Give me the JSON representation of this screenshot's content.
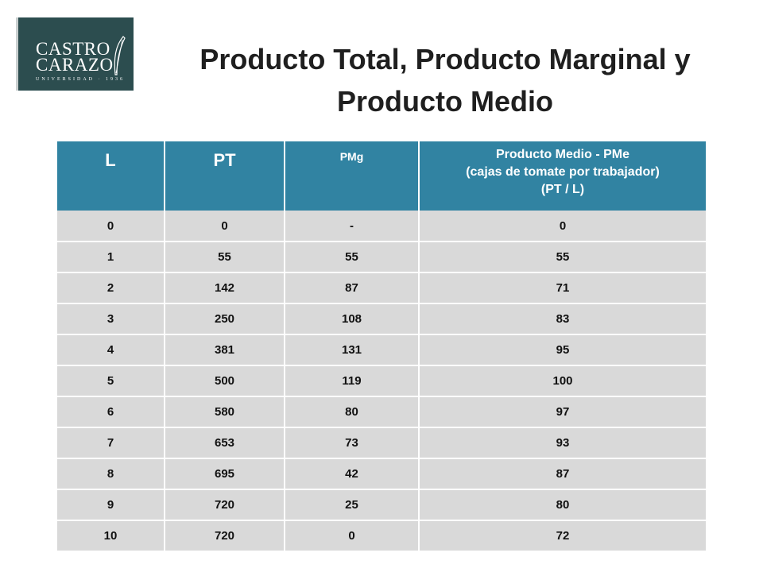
{
  "logo": {
    "line1": "CASTRO",
    "line2": "CARAZO",
    "subtitle": "UNIVERSIDAD · 1936",
    "colors": {
      "background": "#2c4d4f",
      "text": "#ffffff"
    }
  },
  "title": "Producto Total, Producto Marginal y Producto Medio",
  "table": {
    "headers": {
      "l": "L",
      "pt": "PT",
      "pmg": "PMg",
      "pme": [
        "Producto Medio - PMe",
        "(cajas de tomate por trabajador)",
        "(PT / L)"
      ]
    },
    "rows": [
      [
        "0",
        "0",
        "-",
        "0"
      ],
      [
        "1",
        "55",
        "55",
        "55"
      ],
      [
        "2",
        "142",
        "87",
        "71"
      ],
      [
        "3",
        "250",
        "108",
        "83"
      ],
      [
        "4",
        "381",
        "131",
        "95"
      ],
      [
        "5",
        "500",
        "119",
        "100"
      ],
      [
        "6",
        "580",
        "80",
        "97"
      ],
      [
        "7",
        "653",
        "73",
        "93"
      ],
      [
        "8",
        "695",
        "42",
        "87"
      ],
      [
        "9",
        "720",
        "25",
        "80"
      ],
      [
        "10",
        "720",
        "0",
        "72"
      ]
    ],
    "colors": {
      "header": "#3183a2",
      "cell": "#d9d9d9"
    }
  }
}
